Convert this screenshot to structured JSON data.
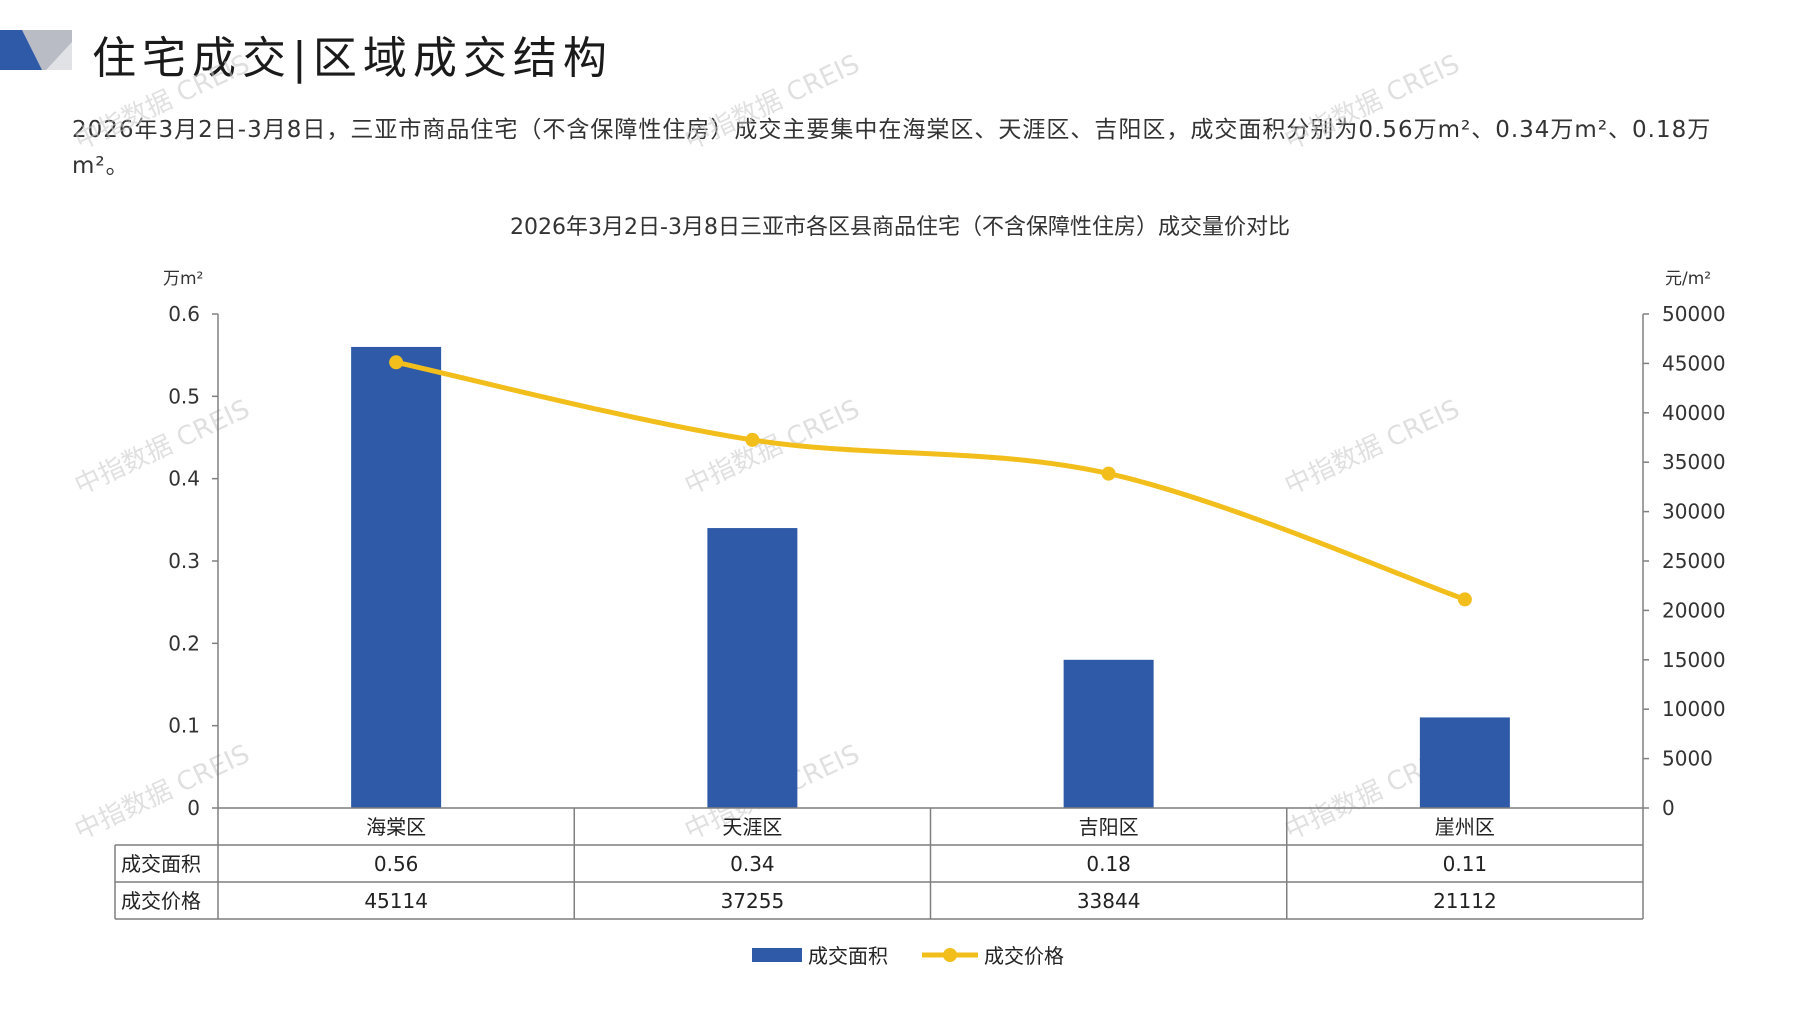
{
  "header": {
    "title": "住宅成交|区域成交结构",
    "summary": "2026年3月2日-3月8日，三亚市商品住宅（不含保障性住房）成交主要集中在海棠区、天涯区、吉阳区，成交面积分别为0.56万m²、0.34万m²、0.18万m²。"
  },
  "watermark": "中指数据 CREIS",
  "colors": {
    "bar": "#2E5AA7",
    "line": "#F2BE1B",
    "axis": "#808080"
  },
  "chart_data": {
    "type": "bar",
    "title": "2026年3月2日-3月8日三亚市各区县商品住宅（不含保障性住房）成交量价对比",
    "categories": [
      "海棠区",
      "天涯区",
      "吉阳区",
      "崖州区"
    ],
    "series": [
      {
        "name": "成交面积",
        "type": "bar",
        "axis": "left",
        "values": [
          0.56,
          0.34,
          0.18,
          0.11
        ]
      },
      {
        "name": "成交价格",
        "type": "line",
        "axis": "right",
        "values": [
          45114,
          37255,
          33844,
          21112
        ]
      }
    ],
    "left_axis": {
      "unit": "万m²",
      "ylim": [
        0,
        0.6
      ],
      "ticks": [
        "0",
        "0.1",
        "0.2",
        "0.3",
        "0.4",
        "0.5",
        "0.6"
      ]
    },
    "right_axis": {
      "unit": "元/m²",
      "ylim": [
        0,
        50000
      ],
      "ticks": [
        "0",
        "5000",
        "10000",
        "15000",
        "20000",
        "25000",
        "30000",
        "35000",
        "40000",
        "45000",
        "50000"
      ]
    },
    "table": {
      "rows": [
        {
          "label": "成交面积",
          "cells": [
            "0.56",
            "0.34",
            "0.18",
            "0.11"
          ]
        },
        {
          "label": "成交价格",
          "cells": [
            "45114",
            "37255",
            "33844",
            "21112"
          ]
        }
      ]
    },
    "legend": {
      "position": "bottom",
      "items": [
        "成交面积",
        "成交价格"
      ]
    },
    "grid": false
  }
}
